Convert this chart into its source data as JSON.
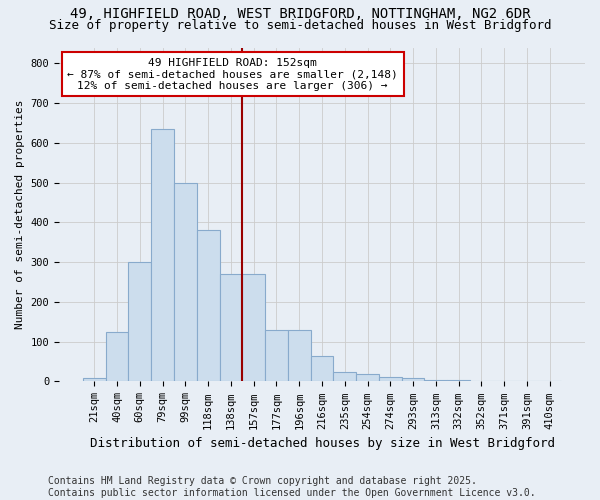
{
  "title_line1": "49, HIGHFIELD ROAD, WEST BRIDGFORD, NOTTINGHAM, NG2 6DR",
  "title_line2": "Size of property relative to semi-detached houses in West Bridgford",
  "xlabel": "Distribution of semi-detached houses by size in West Bridgford",
  "ylabel": "Number of semi-detached properties",
  "categories": [
    "21sqm",
    "40sqm",
    "60sqm",
    "79sqm",
    "99sqm",
    "118sqm",
    "138sqm",
    "157sqm",
    "177sqm",
    "196sqm",
    "216sqm",
    "235sqm",
    "254sqm",
    "274sqm",
    "293sqm",
    "313sqm",
    "332sqm",
    "352sqm",
    "371sqm",
    "391sqm",
    "410sqm"
  ],
  "values": [
    8,
    125,
    300,
    635,
    500,
    380,
    270,
    270,
    130,
    130,
    65,
    25,
    18,
    10,
    8,
    4,
    3,
    2,
    1,
    0,
    0
  ],
  "bar_color": "#ccdded",
  "bar_edge_color": "#88aacc",
  "property_line_index": 7,
  "property_line_color": "#990000",
  "annotation_text": "49 HIGHFIELD ROAD: 152sqm\n← 87% of semi-detached houses are smaller (2,148)\n12% of semi-detached houses are larger (306) →",
  "annotation_box_facecolor": "#ffffff",
  "annotation_box_edgecolor": "#cc0000",
  "ylim": [
    0,
    840
  ],
  "yticks": [
    0,
    100,
    200,
    300,
    400,
    500,
    600,
    700,
    800
  ],
  "grid_color": "#cccccc",
  "background_color": "#e8eef5",
  "footer_text": "Contains HM Land Registry data © Crown copyright and database right 2025.\nContains public sector information licensed under the Open Government Licence v3.0.",
  "title_fontsize": 10,
  "subtitle_fontsize": 9,
  "ylabel_fontsize": 8,
  "xlabel_fontsize": 9,
  "tick_fontsize": 7.5,
  "annotation_fontsize": 8,
  "footer_fontsize": 7
}
